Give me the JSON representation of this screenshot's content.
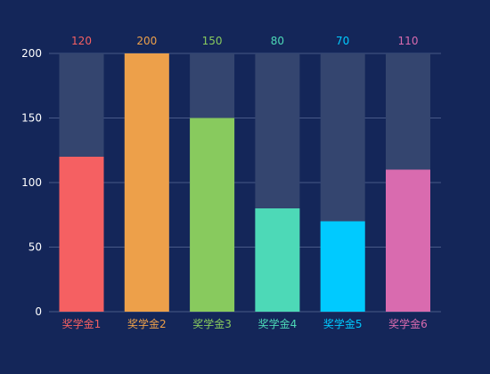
{
  "colors": {
    "background": "#142659",
    "bar_track": "#34456F",
    "gridline": "#5A6B98",
    "axis_text": "#FFFFFF"
  },
  "chart_data": {
    "type": "bar",
    "title": "",
    "xlabel": "",
    "ylabel": "",
    "categories": [
      "奖学金1",
      "奖学金2",
      "奖学金3",
      "奖学金4",
      "奖学金5",
      "奖学金6"
    ],
    "values": [
      120,
      200,
      150,
      80,
      70,
      110
    ],
    "max_track_value": 200,
    "bar_colors": [
      "#F56062",
      "#EDA04A",
      "#88CA5E",
      "#4DD9B7",
      "#00CAFF",
      "#D96BAF"
    ],
    "ylim": [
      0,
      200
    ],
    "yticks": [
      0,
      50,
      100,
      150,
      200
    ],
    "grid": true,
    "legend": "none",
    "data_labels": "above",
    "category_labels_colored": true
  }
}
